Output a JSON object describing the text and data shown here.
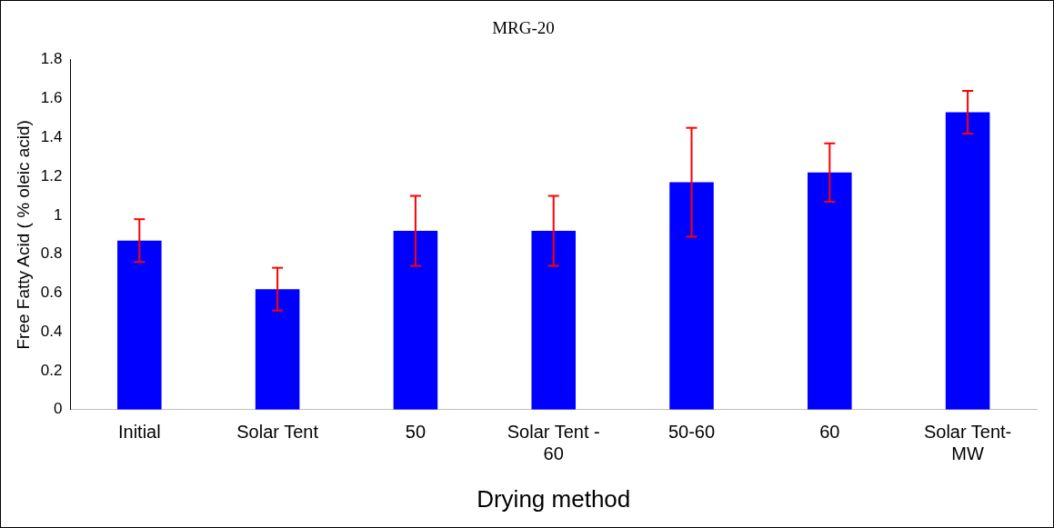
{
  "chart_data": {
    "type": "bar",
    "title": "MRG-20",
    "xlabel": "Drying method",
    "ylabel": "Free Fatty Acid ( % oleic acid)",
    "categories": [
      "Initial",
      "Solar Tent",
      "50",
      "Solar Tent - 60",
      "50-60",
      "60",
      "Solar Tent-MW"
    ],
    "values": [
      0.87,
      0.62,
      0.92,
      0.92,
      1.17,
      1.22,
      1.53
    ],
    "errors": [
      0.11,
      0.11,
      0.18,
      0.18,
      0.28,
      0.15,
      0.11
    ],
    "color": "#0000ff",
    "ylim": [
      0,
      1.8
    ],
    "yticks": [
      0,
      0.2,
      0.4,
      0.6,
      0.8,
      1,
      1.2,
      1.4,
      1.6,
      1.8
    ],
    "grid": false,
    "legend": false
  }
}
